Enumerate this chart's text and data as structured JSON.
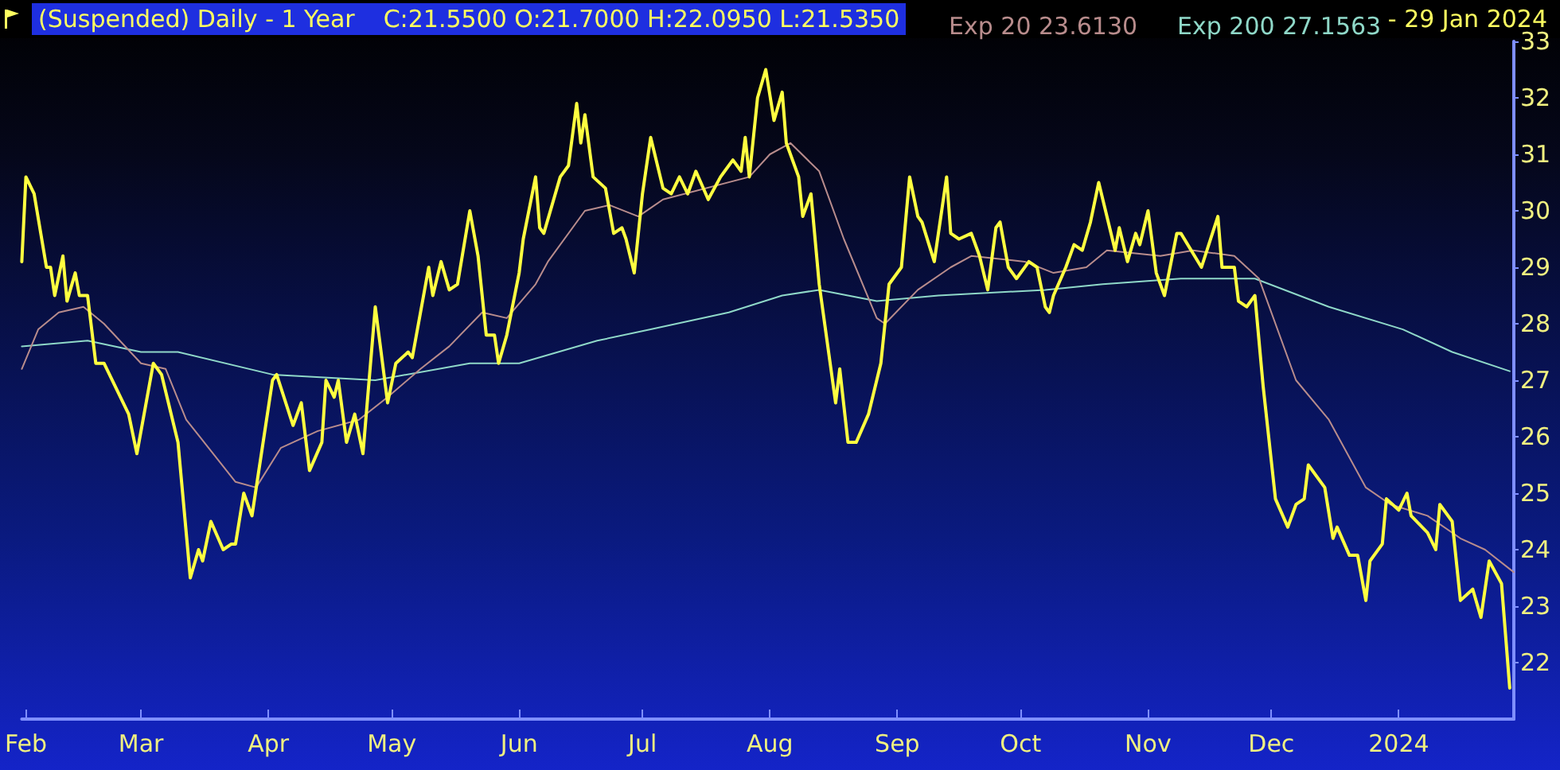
{
  "chart_data": {
    "type": "line",
    "title": "(Suspended) Daily -  1 Year",
    "annotations": [
      "C:21.5500 O:21.7000 H:22.0950 L:21.5350",
      "-  29 Jan 2024"
    ],
    "xlim": [
      "2023-01-31",
      "2024-01-29"
    ],
    "xticks": [
      {
        "value": "2023-02-01",
        "label": "Feb"
      },
      {
        "value": "2023-03-01",
        "label": "Mar"
      },
      {
        "value": "2023-04-01",
        "label": "Apr"
      },
      {
        "value": "2023-05-01",
        "label": "May"
      },
      {
        "value": "2023-06-01",
        "label": "Jun"
      },
      {
        "value": "2023-07-01",
        "label": "Jul"
      },
      {
        "value": "2023-08-01",
        "label": "Aug"
      },
      {
        "value": "2023-09-01",
        "label": "Sep"
      },
      {
        "value": "2023-10-01",
        "label": "Oct"
      },
      {
        "value": "2023-11-01",
        "label": "Nov"
      },
      {
        "value": "2023-12-01",
        "label": "Dec"
      },
      {
        "value": "2024-01-01",
        "label": "2024"
      }
    ],
    "ylim": [
      21,
      33
    ],
    "yticks": [
      22,
      23,
      24,
      25,
      26,
      27,
      28,
      29,
      30,
      31,
      32,
      33
    ],
    "grid": false,
    "legend": "top",
    "marker": "none",
    "line_style": "solid",
    "series": [
      {
        "color": "#ffff40",
        "x": [
          "2023-01-31",
          "2023-02-01",
          "2023-02-03",
          "2023-02-06",
          "2023-02-07",
          "2023-02-08",
          "2023-02-10",
          "2023-02-11",
          "2023-02-13",
          "2023-02-14",
          "2023-02-16",
          "2023-02-18",
          "2023-02-20",
          "2023-02-26",
          "2023-02-28",
          "2023-03-04",
          "2023-03-06",
          "2023-03-10",
          "2023-03-13",
          "2023-03-15",
          "2023-03-16",
          "2023-03-18",
          "2023-03-21",
          "2023-03-23",
          "2023-03-24",
          "2023-03-26",
          "2023-03-28",
          "2023-04-02",
          "2023-04-03",
          "2023-04-07",
          "2023-04-09",
          "2023-04-11",
          "2023-04-14",
          "2023-04-15",
          "2023-04-17",
          "2023-04-18",
          "2023-04-20",
          "2023-04-22",
          "2023-04-24",
          "2023-04-27",
          "2023-04-30",
          "2023-05-02",
          "2023-05-05",
          "2023-05-06",
          "2023-05-10",
          "2023-05-11",
          "2023-05-13",
          "2023-05-15",
          "2023-05-17",
          "2023-05-20",
          "2023-05-22",
          "2023-05-24",
          "2023-05-26",
          "2023-05-27",
          "2023-05-29",
          "2023-06-01",
          "2023-06-02",
          "2023-06-05",
          "2023-06-06",
          "2023-06-07",
          "2023-06-11",
          "2023-06-13",
          "2023-06-15",
          "2023-06-16",
          "2023-06-17",
          "2023-06-19",
          "2023-06-22",
          "2023-06-24",
          "2023-06-26",
          "2023-06-27",
          "2023-06-29",
          "2023-07-01",
          "2023-07-03",
          "2023-07-06",
          "2023-07-08",
          "2023-07-10",
          "2023-07-12",
          "2023-07-14",
          "2023-07-17",
          "2023-07-20",
          "2023-07-21",
          "2023-07-23",
          "2023-07-25",
          "2023-07-26",
          "2023-07-27",
          "2023-07-29",
          "2023-07-31",
          "2023-08-02",
          "2023-08-04",
          "2023-08-05",
          "2023-08-08",
          "2023-08-09",
          "2023-08-11",
          "2023-08-13",
          "2023-08-17",
          "2023-08-18",
          "2023-08-20",
          "2023-08-22",
          "2023-08-25",
          "2023-08-28",
          "2023-08-30",
          "2023-09-02",
          "2023-09-04",
          "2023-09-06",
          "2023-09-07",
          "2023-09-10",
          "2023-09-13",
          "2023-09-14",
          "2023-09-16",
          "2023-09-19",
          "2023-09-21",
          "2023-09-23",
          "2023-09-25",
          "2023-09-26",
          "2023-09-28",
          "2023-09-30",
          "2023-10-03",
          "2023-10-05",
          "2023-10-07",
          "2023-10-08",
          "2023-10-09",
          "2023-10-12",
          "2023-10-14",
          "2023-10-16",
          "2023-10-18",
          "2023-10-20",
          "2023-10-24",
          "2023-10-25",
          "2023-10-27",
          "2023-10-29",
          "2023-10-30",
          "2023-11-01",
          "2023-11-03",
          "2023-11-05",
          "2023-11-08",
          "2023-11-09",
          "2023-11-14",
          "2023-11-18",
          "2023-11-19",
          "2023-11-22",
          "2023-11-23",
          "2023-11-25",
          "2023-11-27",
          "2023-11-29",
          "2023-12-02",
          "2023-12-05",
          "2023-12-07",
          "2023-12-09",
          "2023-12-10",
          "2023-12-14",
          "2023-12-16",
          "2023-12-17",
          "2023-12-20",
          "2023-12-22",
          "2023-12-24",
          "2023-12-25",
          "2023-12-28",
          "2023-12-29",
          "2024-01-01",
          "2024-01-03",
          "2024-01-04",
          "2024-01-08",
          "2024-01-10",
          "2024-01-11",
          "2024-01-14",
          "2024-01-16",
          "2024-01-19",
          "2024-01-21",
          "2024-01-23",
          "2024-01-26",
          "2024-01-28"
        ],
        "values": [
          29.1,
          30.6,
          30.3,
          29.0,
          29.0,
          28.5,
          29.2,
          28.4,
          28.9,
          28.5,
          28.5,
          27.3,
          27.3,
          26.4,
          25.7,
          27.3,
          27.1,
          25.9,
          23.5,
          24.0,
          23.8,
          24.5,
          24.0,
          24.1,
          24.1,
          25.0,
          24.6,
          27.0,
          27.1,
          26.2,
          26.6,
          25.4,
          25.9,
          27.0,
          26.7,
          27.0,
          25.9,
          26.4,
          25.7,
          28.3,
          26.6,
          27.3,
          27.5,
          27.4,
          29.0,
          28.5,
          29.1,
          28.6,
          28.7,
          30.0,
          29.2,
          27.8,
          27.8,
          27.3,
          27.8,
          28.9,
          29.5,
          30.6,
          29.7,
          29.6,
          30.6,
          30.8,
          31.9,
          31.2,
          31.7,
          30.6,
          30.4,
          29.6,
          29.7,
          29.5,
          28.9,
          30.3,
          31.3,
          30.4,
          30.3,
          30.6,
          30.3,
          30.7,
          30.2,
          30.6,
          30.7,
          30.9,
          30.7,
          31.3,
          30.6,
          32.0,
          32.5,
          31.6,
          32.1,
          31.2,
          30.6,
          29.9,
          30.3,
          28.7,
          26.6,
          27.2,
          25.9,
          25.9,
          26.4,
          27.3,
          28.7,
          29.0,
          30.6,
          29.9,
          29.8,
          29.1,
          30.6,
          29.6,
          29.5,
          29.6,
          29.2,
          28.6,
          29.7,
          29.8,
          29.0,
          28.8,
          29.1,
          29.0,
          28.3,
          28.2,
          28.5,
          29.0,
          29.4,
          29.3,
          29.8,
          30.5,
          29.3,
          29.7,
          29.1,
          29.6,
          29.4,
          30.0,
          28.9,
          28.5,
          29.6,
          29.6,
          29.0,
          29.9,
          29.0,
          29.0,
          28.4,
          28.3,
          28.5,
          26.9,
          24.9,
          24.4,
          24.8,
          24.9,
          25.5,
          25.1,
          24.2,
          24.4,
          23.9,
          23.9,
          23.1,
          23.8,
          24.1,
          24.9,
          24.7,
          25.0,
          24.6,
          24.3,
          24.0,
          24.8,
          24.5,
          23.1,
          23.3,
          22.8,
          23.8,
          23.4,
          21.55
        ]
      },
      {
        "name": "Exp 20 23.6130",
        "color": "#b88c8c",
        "x": [
          "2023-01-31",
          "2023-02-04",
          "2023-02-09",
          "2023-02-15",
          "2023-02-20",
          "2023-03-01",
          "2023-03-07",
          "2023-03-12",
          "2023-03-24",
          "2023-03-29",
          "2023-04-04",
          "2023-04-13",
          "2023-04-23",
          "2023-04-30",
          "2023-05-08",
          "2023-05-15",
          "2023-05-23",
          "2023-05-29",
          "2023-06-05",
          "2023-06-08",
          "2023-06-17",
          "2023-06-23",
          "2023-06-30",
          "2023-07-06",
          "2023-07-27",
          "2023-08-01",
          "2023-08-06",
          "2023-08-13",
          "2023-08-19",
          "2023-08-27",
          "2023-08-29",
          "2023-09-06",
          "2023-09-14",
          "2023-09-19",
          "2023-10-02",
          "2023-10-09",
          "2023-10-17",
          "2023-10-22",
          "2023-11-04",
          "2023-11-12",
          "2023-11-22",
          "2023-11-28",
          "2023-12-07",
          "2023-12-15",
          "2023-12-24",
          "2023-12-30",
          "2024-01-08",
          "2024-01-16",
          "2024-01-22",
          "2024-01-29"
        ],
        "values": [
          27.2,
          27.9,
          28.2,
          28.3,
          28.0,
          27.3,
          27.2,
          26.3,
          25.2,
          25.1,
          25.8,
          26.1,
          26.3,
          26.7,
          27.2,
          27.6,
          28.2,
          28.1,
          28.7,
          29.1,
          30.0,
          30.1,
          29.9,
          30.2,
          30.6,
          31.0,
          31.2,
          30.7,
          29.5,
          28.1,
          28.0,
          28.6,
          29.0,
          29.2,
          29.1,
          28.9,
          29.0,
          29.3,
          29.2,
          29.3,
          29.2,
          28.8,
          27.0,
          26.3,
          25.1,
          24.8,
          24.6,
          24.2,
          24.0,
          23.6
        ]
      },
      {
        "name": "Exp 200 27.1563",
        "color": "#8fd8c8",
        "x": [
          "2023-01-31",
          "2023-02-16",
          "2023-03-01",
          "2023-03-10",
          "2023-04-02",
          "2023-04-27",
          "2023-05-20",
          "2023-06-01",
          "2023-06-20",
          "2023-07-03",
          "2023-07-22",
          "2023-08-04",
          "2023-08-13",
          "2023-08-27",
          "2023-09-11",
          "2023-10-07",
          "2023-10-21",
          "2023-11-09",
          "2023-11-27",
          "2023-12-15",
          "2024-01-02",
          "2024-01-14",
          "2024-01-28"
        ],
        "values": [
          27.6,
          27.7,
          27.5,
          27.5,
          27.1,
          27.0,
          27.3,
          27.3,
          27.7,
          27.9,
          28.2,
          28.5,
          28.6,
          28.4,
          28.5,
          28.6,
          28.7,
          28.8,
          28.8,
          28.3,
          27.9,
          27.5,
          27.16
        ]
      }
    ]
  }
}
